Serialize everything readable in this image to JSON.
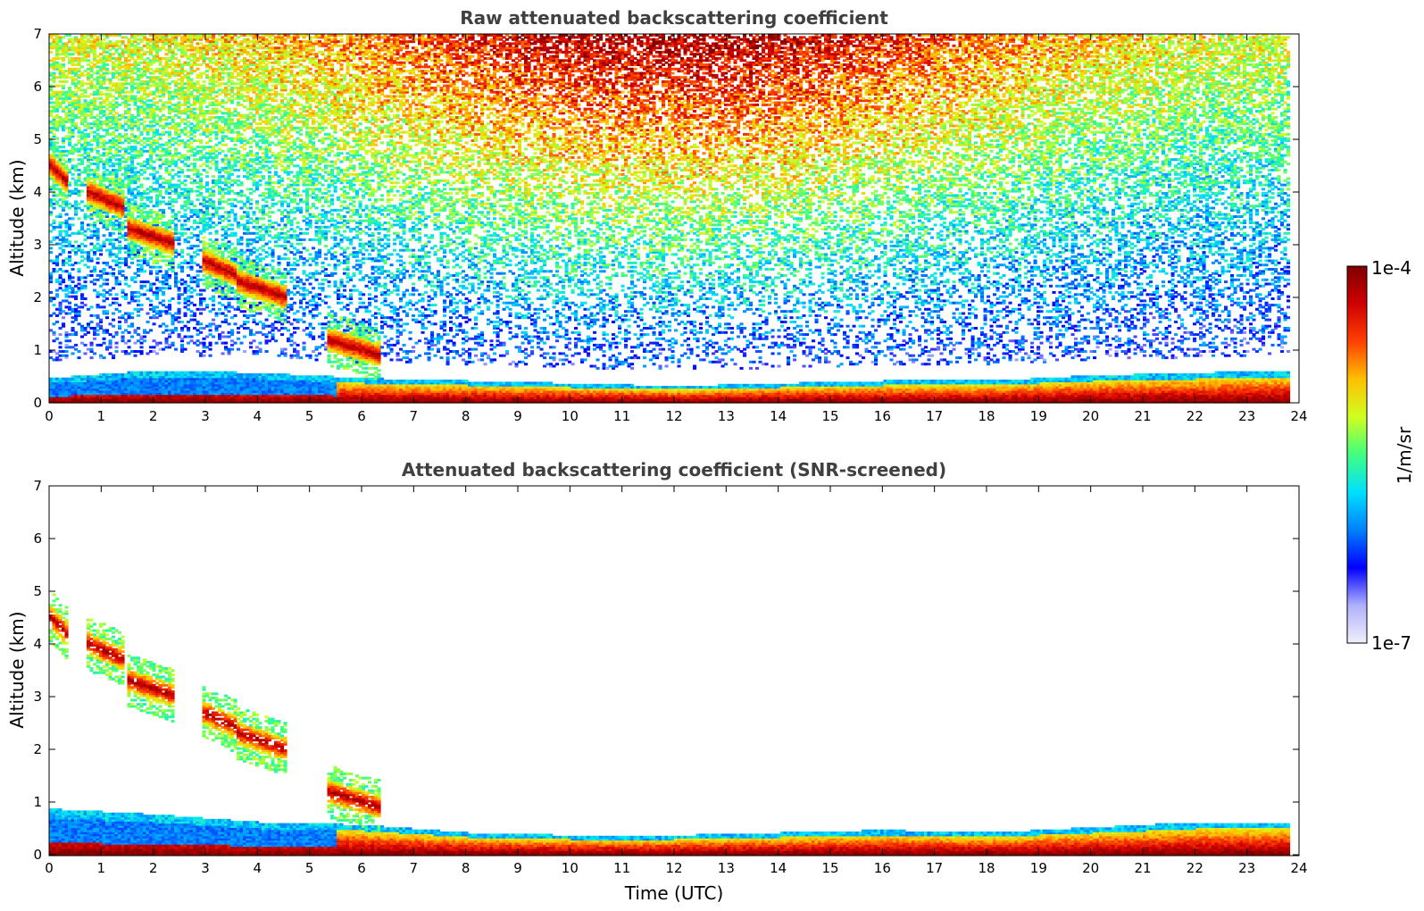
{
  "chart_data": [
    {
      "type": "heatmap",
      "title": "Raw attenuated backscattering coefficient",
      "xlabel": "",
      "ylabel": "Altitude (km)",
      "xlim": [
        0,
        24
      ],
      "ylim": [
        0,
        7
      ],
      "xticks": [
        "0",
        "1",
        "2",
        "3",
        "4",
        "5",
        "6",
        "7",
        "8",
        "9",
        "10",
        "11",
        "12",
        "13",
        "14",
        "15",
        "16",
        "17",
        "18",
        "19",
        "20",
        "21",
        "22",
        "23",
        "24"
      ],
      "yticks": [
        "0",
        "1",
        "2",
        "3",
        "4",
        "5",
        "6",
        "7"
      ],
      "scale": "log",
      "features": {
        "boundary_layer_top_km": [
          [
            0,
            0.45
          ],
          [
            2,
            0.6
          ],
          [
            4,
            0.55
          ],
          [
            6,
            0.45
          ],
          [
            8,
            0.4
          ],
          [
            10,
            0.35
          ],
          [
            12,
            0.3
          ],
          [
            14,
            0.35
          ],
          [
            16,
            0.4
          ],
          [
            18,
            0.4
          ],
          [
            20,
            0.5
          ],
          [
            22,
            0.55
          ],
          [
            23.8,
            0.6
          ]
        ],
        "cloud_layers": [
          {
            "t_start": 0.0,
            "t_end": 0.3,
            "alt_km": 4.5
          },
          {
            "t_start": 0.7,
            "t_end": 1.4,
            "alt_km": 4.0
          },
          {
            "t_start": 1.5,
            "t_end": 2.4,
            "alt_km": 3.3
          },
          {
            "t_start": 2.9,
            "t_end": 3.6,
            "alt_km": 2.7
          },
          {
            "t_start": 3.6,
            "t_end": 4.5,
            "alt_km": 2.3
          },
          {
            "t_start": 5.3,
            "t_end": 6.3,
            "alt_km": 1.2
          }
        ],
        "noisy_free_troposphere": true
      }
    },
    {
      "type": "heatmap",
      "title": "Attenuated backscattering coefficient (SNR-screened)",
      "xlabel": "Time (UTC)",
      "ylabel": "Altitude (km)",
      "xlim": [
        0,
        24
      ],
      "ylim": [
        0,
        7
      ],
      "xticks": [
        "0",
        "1",
        "2",
        "3",
        "4",
        "5",
        "6",
        "7",
        "8",
        "9",
        "10",
        "11",
        "12",
        "13",
        "14",
        "15",
        "16",
        "17",
        "18",
        "19",
        "20",
        "21",
        "22",
        "23",
        "24"
      ],
      "yticks": [
        "0",
        "1",
        "2",
        "3",
        "4",
        "5",
        "6",
        "7"
      ],
      "scale": "log",
      "features": {
        "boundary_layer_top_km": [
          [
            0,
            0.85
          ],
          [
            2,
            0.75
          ],
          [
            4,
            0.6
          ],
          [
            6,
            0.55
          ],
          [
            8,
            0.4
          ],
          [
            10,
            0.35
          ],
          [
            12,
            0.35
          ],
          [
            14,
            0.4
          ],
          [
            16,
            0.45
          ],
          [
            18,
            0.4
          ],
          [
            20,
            0.5
          ],
          [
            22,
            0.6
          ],
          [
            23.8,
            0.6
          ]
        ],
        "noisy_free_troposphere": false
      }
    }
  ],
  "colorbar": {
    "label": "1/m/sr",
    "max_label": "1e-4",
    "min_label": "1e-7",
    "colormap": "jet",
    "colors": [
      "#f0f0fa",
      "#b0b0ff",
      "#0000ff",
      "#0080ff",
      "#00e0ff",
      "#40ff80",
      "#d0ff20",
      "#ffc000",
      "#ff4000",
      "#d00000",
      "#800000"
    ]
  }
}
